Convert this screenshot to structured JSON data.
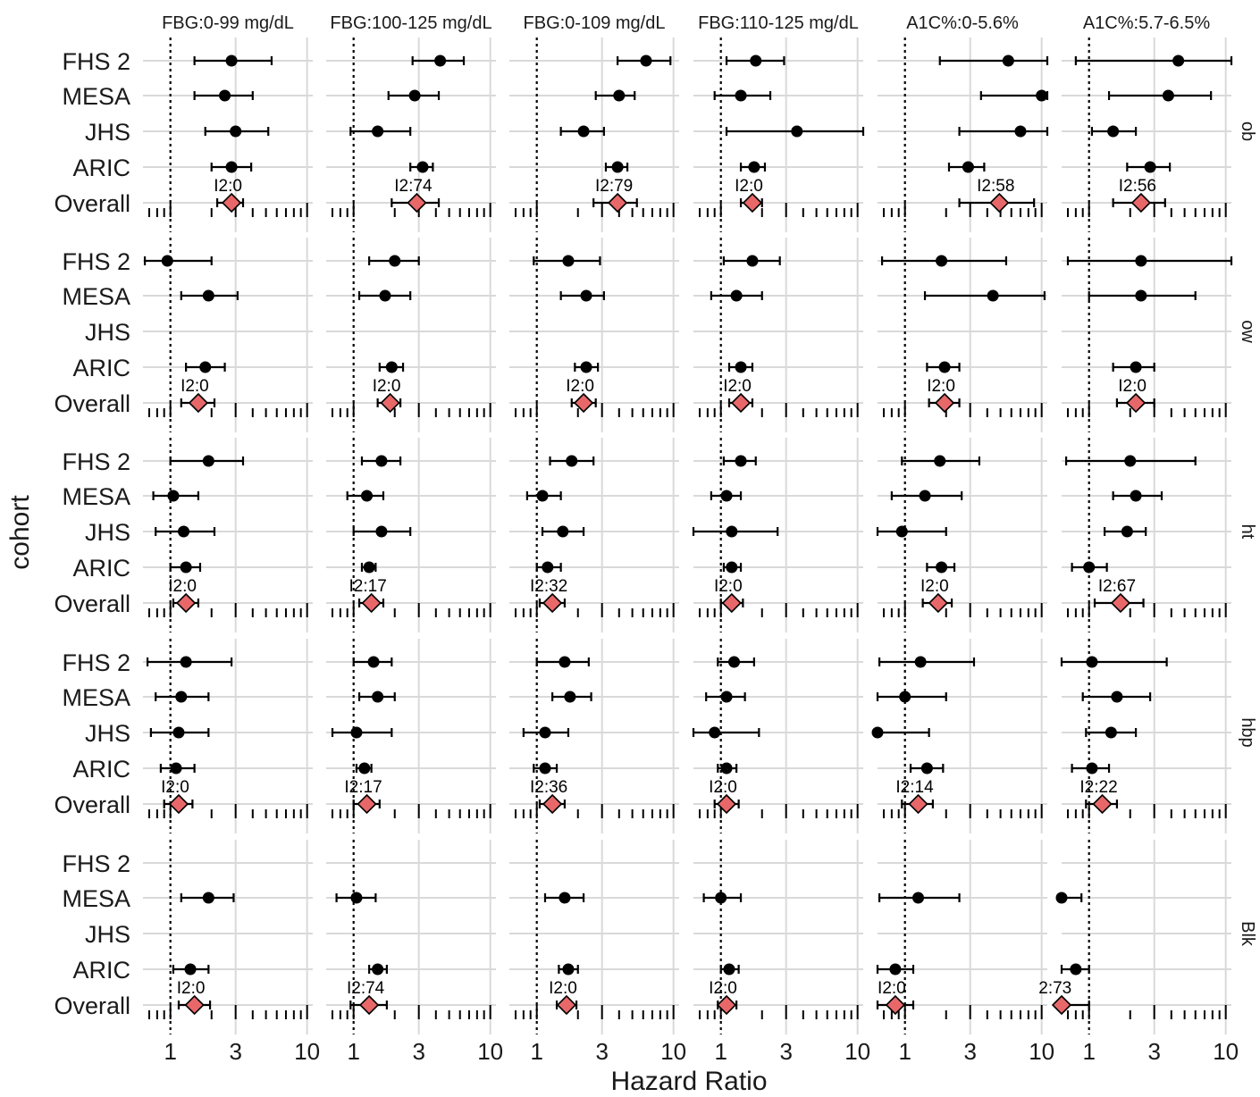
{
  "chart_data": {
    "type": "scatter",
    "subtype": "forest-plot-faceted",
    "xlabel": "Hazard Ratio",
    "ylabel": "cohort",
    "x_scale": "log10",
    "xlim": [
      0.63,
      11
    ],
    "x_ticks": [
      1,
      3,
      10
    ],
    "x_tick_labels": [
      "1",
      "3",
      "10"
    ],
    "reference_line": 1,
    "grid": true,
    "cohorts": [
      "FHS 2",
      "MESA",
      "JHS",
      "ARIC",
      "Overall"
    ],
    "columns": [
      "FBG:0-99 mg/dL",
      "FBG:100-125 mg/dL",
      "FBG:0-109 mg/dL",
      "FBG:110-125 mg/dL",
      "A1C%:0-5.6%",
      "A1C%:5.7-6.5%"
    ],
    "rows": [
      "ob",
      "ow",
      "ht",
      "hbp",
      "Blk"
    ],
    "colors": {
      "point": "#000000",
      "overall_fill": "#e8686a",
      "grid": "#d9d9d9"
    },
    "panels": [
      [
        {
          "i2": "I2:0",
          "est": [
            [
              2.8,
              1.5,
              5.5
            ],
            [
              2.5,
              1.5,
              4.0
            ],
            [
              3.0,
              1.8,
              5.2
            ],
            [
              2.8,
              2.0,
              3.9
            ],
            [
              2.8,
              2.2,
              3.4
            ]
          ]
        },
        {
          "i2": "I2:74",
          "est": [
            [
              4.3,
              2.7,
              6.4
            ],
            [
              2.8,
              1.8,
              4.2
            ],
            [
              1.5,
              0.95,
              2.6
            ],
            [
              3.2,
              2.6,
              3.8
            ],
            [
              2.9,
              1.9,
              4.2
            ]
          ]
        },
        {
          "i2": "I2:79",
          "est": [
            [
              6.3,
              3.9,
              9.5
            ],
            [
              4.0,
              2.7,
              5.2
            ],
            [
              2.2,
              1.5,
              3.1
            ],
            [
              3.9,
              3.2,
              4.6
            ],
            [
              3.9,
              2.6,
              5.4
            ]
          ]
        },
        {
          "i2": "I2:0",
          "est": [
            [
              1.8,
              1.1,
              2.9
            ],
            [
              1.4,
              0.9,
              2.3
            ],
            [
              3.6,
              1.1,
              11
            ],
            [
              1.75,
              1.4,
              2.1
            ],
            [
              1.7,
              1.4,
              2.0
            ]
          ]
        },
        {
          "i2": "I2:58",
          "est": [
            [
              5.7,
              1.8,
              11
            ],
            [
              10.0,
              3.6,
              11
            ],
            [
              7.0,
              2.5,
              11
            ],
            [
              2.9,
              2.1,
              3.8
            ],
            [
              4.9,
              2.5,
              8.8
            ]
          ]
        },
        {
          "i2": "I2:56",
          "est": [
            [
              4.5,
              0.8,
              11
            ],
            [
              3.8,
              1.4,
              7.8
            ],
            [
              1.5,
              1.05,
              2.2
            ],
            [
              2.8,
              1.9,
              3.9
            ],
            [
              2.4,
              1.5,
              3.6
            ]
          ]
        }
      ],
      [
        {
          "i2": "I2:0",
          "est": [
            [
              0.95,
              0.65,
              2.0
            ],
            [
              1.9,
              1.2,
              3.1
            ],
            null,
            [
              1.8,
              1.3,
              2.5
            ],
            [
              1.6,
              1.2,
              2.1
            ]
          ]
        },
        {
          "i2": "I2:0",
          "est": [
            [
              2.0,
              1.3,
              3.0
            ],
            [
              1.7,
              1.1,
              2.6
            ],
            null,
            [
              1.9,
              1.55,
              2.3
            ],
            [
              1.85,
              1.5,
              2.2
            ]
          ]
        },
        {
          "i2": "I2:0",
          "est": [
            [
              1.7,
              0.95,
              2.9
            ],
            [
              2.3,
              1.5,
              3.1
            ],
            null,
            [
              2.3,
              1.9,
              2.8
            ],
            [
              2.2,
              1.8,
              2.7
            ]
          ]
        },
        {
          "i2": "I2:0",
          "est": [
            [
              1.7,
              1.05,
              2.7
            ],
            [
              1.3,
              0.85,
              2.0
            ],
            null,
            [
              1.4,
              1.15,
              1.7
            ],
            [
              1.4,
              1.15,
              1.7
            ]
          ]
        },
        {
          "i2": "I2:0",
          "est": [
            [
              1.85,
              0.68,
              5.5
            ],
            [
              4.4,
              1.4,
              10.5
            ],
            null,
            [
              1.95,
              1.45,
              2.5
            ],
            [
              1.95,
              1.5,
              2.5
            ]
          ]
        },
        {
          "i2": "I2:0",
          "est": [
            [
              2.4,
              0.7,
              11
            ],
            [
              2.4,
              1.0,
              6.0
            ],
            null,
            [
              2.2,
              1.5,
              3.0
            ],
            [
              2.2,
              1.6,
              3.0
            ]
          ]
        }
      ],
      [
        {
          "i2": "I2:0",
          "est": [
            [
              1.9,
              1.0,
              3.4
            ],
            [
              1.05,
              0.75,
              1.6
            ],
            [
              1.25,
              0.78,
              2.1
            ],
            [
              1.3,
              1.0,
              1.65
            ],
            [
              1.3,
              1.05,
              1.6
            ]
          ]
        },
        {
          "i2": "I2:17",
          "est": [
            [
              1.6,
              1.15,
              2.2
            ],
            [
              1.25,
              0.9,
              1.65
            ],
            [
              1.6,
              1.0,
              2.6
            ],
            [
              1.3,
              1.15,
              1.45
            ],
            [
              1.35,
              1.1,
              1.65
            ]
          ]
        },
        {
          "i2": "I2:32",
          "est": [
            [
              1.8,
              1.25,
              2.6
            ],
            [
              1.1,
              0.85,
              1.5
            ],
            [
              1.55,
              1.1,
              2.2
            ],
            [
              1.2,
              1.0,
              1.5
            ],
            [
              1.3,
              1.05,
              1.6
            ]
          ]
        },
        {
          "i2": "I2:0",
          "est": [
            [
              1.4,
              1.05,
              1.8
            ],
            [
              1.1,
              0.85,
              1.4
            ],
            [
              1.2,
              0.6,
              2.6
            ],
            [
              1.2,
              1.05,
              1.4
            ],
            [
              1.2,
              1.0,
              1.45
            ]
          ]
        },
        {
          "i2": "I2:0",
          "est": [
            [
              1.8,
              0.95,
              3.5
            ],
            [
              1.4,
              0.8,
              2.6
            ],
            [
              0.95,
              0.6,
              2.0
            ],
            [
              1.85,
              1.45,
              2.3
            ],
            [
              1.75,
              1.35,
              2.2
            ]
          ]
        },
        {
          "i2": "I2:67",
          "est": [
            [
              2.0,
              0.68,
              6.0
            ],
            [
              2.2,
              1.5,
              3.4
            ],
            [
              1.9,
              1.3,
              2.6
            ],
            [
              1.0,
              0.75,
              1.35
            ],
            [
              1.7,
              1.1,
              2.5
            ]
          ]
        }
      ],
      [
        {
          "i2": "I2:0",
          "est": [
            [
              1.3,
              0.68,
              2.8
            ],
            [
              1.2,
              0.78,
              1.9
            ],
            [
              1.15,
              0.72,
              1.9
            ],
            [
              1.1,
              0.85,
              1.5
            ],
            [
              1.15,
              0.9,
              1.45
            ]
          ]
        },
        {
          "i2": "I2:17",
          "est": [
            [
              1.4,
              1.0,
              1.9
            ],
            [
              1.5,
              1.1,
              2.0
            ],
            [
              1.05,
              0.7,
              1.9
            ],
            [
              1.2,
              1.05,
              1.35
            ],
            [
              1.25,
              1.0,
              1.55
            ]
          ]
        },
        {
          "i2": "I2:36",
          "est": [
            [
              1.6,
              1.0,
              2.4
            ],
            [
              1.75,
              1.3,
              2.5
            ],
            [
              1.15,
              0.8,
              1.7
            ],
            [
              1.15,
              0.95,
              1.4
            ],
            [
              1.3,
              1.05,
              1.6
            ]
          ]
        },
        {
          "i2": "I2:0",
          "est": [
            [
              1.25,
              0.95,
              1.75
            ],
            [
              1.1,
              0.78,
              1.5
            ],
            [
              0.9,
              0.58,
              1.9
            ],
            [
              1.1,
              0.95,
              1.3
            ],
            [
              1.1,
              0.9,
              1.35
            ]
          ]
        },
        {
          "i2": "I2:14",
          "est": [
            [
              1.3,
              0.65,
              3.2
            ],
            [
              1.0,
              0.62,
              2.0
            ],
            [
              0.6,
              0.58,
              1.5
            ],
            [
              1.45,
              1.1,
              1.9
            ],
            [
              1.25,
              0.95,
              1.6
            ]
          ]
        },
        {
          "i2": "I2:22",
          "est": [
            [
              1.05,
              0.63,
              3.7
            ],
            [
              1.6,
              0.9,
              2.8
            ],
            [
              1.45,
              0.95,
              2.2
            ],
            [
              1.05,
              0.75,
              1.4
            ],
            [
              1.25,
              0.95,
              1.6
            ]
          ]
        }
      ],
      [
        {
          "i2": "I2:0",
          "est": [
            null,
            [
              1.9,
              1.2,
              2.9
            ],
            null,
            [
              1.4,
              1.05,
              1.9
            ],
            [
              1.5,
              1.15,
              1.95
            ]
          ]
        },
        {
          "i2": "I2:74",
          "est": [
            null,
            [
              1.05,
              0.75,
              1.45
            ],
            null,
            [
              1.5,
              1.3,
              1.75
            ],
            [
              1.3,
              0.95,
              1.75
            ]
          ]
        },
        {
          "i2": "I2:0",
          "est": [
            null,
            [
              1.6,
              1.15,
              2.2
            ],
            null,
            [
              1.7,
              1.45,
              2.0
            ],
            [
              1.65,
              1.4,
              1.95
            ]
          ]
        },
        {
          "i2": "I2:0",
          "est": [
            null,
            [
              1.0,
              0.75,
              1.4
            ],
            null,
            [
              1.15,
              1.0,
              1.35
            ],
            [
              1.1,
              0.95,
              1.3
            ]
          ]
        },
        {
          "i2": "I2:0",
          "est": [
            null,
            [
              1.25,
              0.65,
              2.5
            ],
            null,
            [
              0.85,
              0.62,
              1.15
            ],
            [
              0.85,
              0.62,
              1.15
            ]
          ]
        },
        {
          "i2": "2:73",
          "est": [
            null,
            [
              0.6,
              0.6,
              0.88
            ],
            null,
            [
              0.8,
              0.63,
              1.0
            ],
            [
              0.6,
              0.45,
              1.0
            ]
          ]
        }
      ]
    ]
  }
}
